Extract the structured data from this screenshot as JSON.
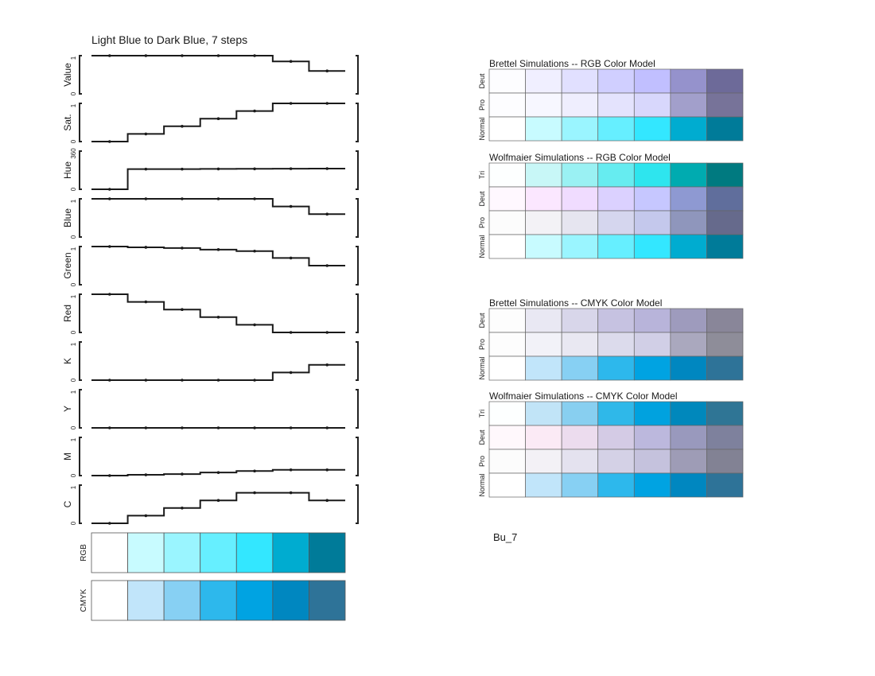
{
  "title": "Light Blue to Dark Blue, 7 steps",
  "scheme_name": "Bu_7",
  "chart_data": {
    "type": "line",
    "title": "Light Blue to Dark Blue, 7 steps",
    "step_count": 7,
    "panels": [
      {
        "label": "Value",
        "ylim": [
          0,
          1
        ],
        "y_ticks": [
          "0",
          "1"
        ],
        "values": [
          1.0,
          1.0,
          1.0,
          1.0,
          1.0,
          0.85,
          0.6
        ]
      },
      {
        "label": "Sat.",
        "ylim": [
          0,
          1
        ],
        "y_ticks": [
          "0",
          "1"
        ],
        "values": [
          0.0,
          0.2,
          0.4,
          0.6,
          0.8,
          1.0,
          1.0
        ]
      },
      {
        "label": "Hue",
        "ylim": [
          0,
          360
        ],
        "y_ticks": [
          "0",
          "360"
        ],
        "values": [
          0,
          190,
          190,
          192,
          193,
          194,
          195
        ]
      },
      {
        "label": "Blue",
        "ylim": [
          0,
          1
        ],
        "y_ticks": [
          "0",
          "1"
        ],
        "values": [
          1.0,
          1.0,
          1.0,
          1.0,
          1.0,
          0.8,
          0.6
        ]
      },
      {
        "label": "Green",
        "ylim": [
          0,
          1
        ],
        "y_ticks": [
          "0",
          "1"
        ],
        "values": [
          1.0,
          0.98,
          0.96,
          0.92,
          0.88,
          0.7,
          0.5
        ]
      },
      {
        "label": "Red",
        "ylim": [
          0,
          1
        ],
        "y_ticks": [
          "0",
          "1"
        ],
        "values": [
          1.0,
          0.8,
          0.6,
          0.4,
          0.2,
          0.0,
          0.0
        ]
      },
      {
        "label": "K",
        "ylim": [
          0,
          1
        ],
        "y_ticks": [
          "0",
          "1"
        ],
        "values": [
          0.0,
          0.0,
          0.0,
          0.0,
          0.0,
          0.2,
          0.4
        ]
      },
      {
        "label": "Y",
        "ylim": [
          0,
          1
        ],
        "y_ticks": [
          "0",
          "1"
        ],
        "values": [
          0.0,
          0.0,
          0.0,
          0.0,
          0.0,
          0.0,
          0.0
        ]
      },
      {
        "label": "M",
        "ylim": [
          0,
          1
        ],
        "y_ticks": [
          "0",
          "1"
        ],
        "values": [
          0.0,
          0.02,
          0.04,
          0.08,
          0.12,
          0.15,
          0.15
        ]
      },
      {
        "label": "C",
        "ylim": [
          0,
          1
        ],
        "y_ticks": [
          "0",
          "1"
        ],
        "values": [
          0.0,
          0.2,
          0.4,
          0.6,
          0.8,
          0.8,
          0.6
        ]
      }
    ],
    "swatches": [
      {
        "label": "RGB",
        "colors": [
          "#ffffff",
          "#c8fbff",
          "#9af5ff",
          "#66efff",
          "#33e7ff",
          "#00acd0",
          "#007b99"
        ]
      },
      {
        "label": "CMYK",
        "colors": [
          "#ffffff",
          "#c1e5fa",
          "#87d0f3",
          "#2db8ec",
          "#00a3e2",
          "#0087c0",
          "#2e7398"
        ]
      }
    ],
    "simulations": [
      {
        "title": "Brettel Simulations -- RGB Color Model",
        "rows": [
          {
            "label": "Deut",
            "colors": [
              "#fdfdff",
              "#f0efff",
              "#e1e0ff",
              "#d0cfff",
              "#c1bfff",
              "#9592cc",
              "#6d6a99"
            ]
          },
          {
            "label": "Pro",
            "colors": [
              "#fdfdff",
              "#f7f7ff",
              "#efeefe",
              "#e4e3fd",
              "#d8d7fc",
              "#a29fcb",
              "#777399"
            ]
          },
          {
            "label": "Normal",
            "colors": [
              "#ffffff",
              "#c8fbff",
              "#9af5ff",
              "#66efff",
              "#33e7ff",
              "#00acd0",
              "#007b99"
            ]
          }
        ]
      },
      {
        "title": "Wolfmaier Simulations -- RGB Color Model",
        "rows": [
          {
            "label": "Tri",
            "colors": [
              "#fdffff",
              "#c8f7f7",
              "#9af1f3",
              "#66ecf0",
              "#2ee5ee",
              "#00abb0",
              "#007a80"
            ]
          },
          {
            "label": "Deut",
            "colors": [
              "#fff8ff",
              "#fbe7ff",
              "#f0dcff",
              "#dbd1ff",
              "#c6c7ff",
              "#8e99d2",
              "#606e9c"
            ]
          },
          {
            "label": "Pro",
            "colors": [
              "#fcfcfc",
              "#f3f2f6",
              "#e6e5f0",
              "#d5d6ee",
              "#c4c8ec",
              "#8f96bc",
              "#666a8c"
            ]
          },
          {
            "label": "Normal",
            "colors": [
              "#ffffff",
              "#c8fbff",
              "#9af5ff",
              "#66efff",
              "#33e7ff",
              "#00acd0",
              "#007b99"
            ]
          }
        ]
      },
      {
        "title": "Brettel Simulations -- CMYK Color Model",
        "rows": [
          {
            "label": "Deut",
            "colors": [
              "#fdfdfd",
              "#e9e8f3",
              "#d8d6ea",
              "#c6c2e1",
              "#b8b4da",
              "#9e9bbd",
              "#898699"
            ]
          },
          {
            "label": "Pro",
            "colors": [
              "#fdfdfd",
              "#f2f2f8",
              "#e9e8f2",
              "#dcdbec",
              "#d1cfe6",
              "#aaa8be",
              "#8e8d99"
            ]
          },
          {
            "label": "Normal",
            "colors": [
              "#ffffff",
              "#c1e5fa",
              "#87d0f3",
              "#2db8ec",
              "#00a3e2",
              "#0087c0",
              "#2e7398"
            ]
          }
        ]
      },
      {
        "title": "Wolfmaier Simulations -- CMYK Color Model",
        "rows": [
          {
            "label": "Tri",
            "colors": [
              "#fdffff",
              "#c1e4f7",
              "#88cff0",
              "#2fb8e9",
              "#00a2df",
              "#0088bc",
              "#2f7595"
            ]
          },
          {
            "label": "Deut",
            "colors": [
              "#fff8fc",
              "#fbeaf5",
              "#ecdcee",
              "#d4cbe5",
              "#bcb8dd",
              "#9999bd",
              "#7e819d"
            ]
          },
          {
            "label": "Pro",
            "colors": [
              "#fcfcfc",
              "#f3f1f6",
              "#e4e2ef",
              "#d4d1e6",
              "#c5c2dd",
              "#9e9cb6",
              "#828294"
            ]
          },
          {
            "label": "Normal",
            "colors": [
              "#ffffff",
              "#c1e5fa",
              "#87d0f3",
              "#2db8ec",
              "#00a3e2",
              "#0087c0",
              "#2e7398"
            ]
          }
        ]
      }
    ]
  }
}
